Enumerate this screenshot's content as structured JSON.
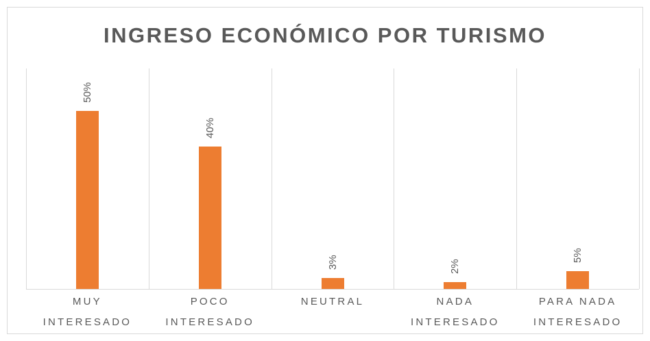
{
  "chart_data": {
    "type": "bar",
    "title": "INGRESO ECONÓMICO POR TURISMO",
    "categories": [
      "MUY INTERESADO",
      "POCO INTERESADO",
      "NEUTRAL",
      "NADA INTERESADO",
      "PARA NADA INTERESADO"
    ],
    "values": [
      50,
      40,
      3,
      2,
      5
    ],
    "value_labels": [
      "50%",
      "40%",
      "3%",
      "2%",
      "5%"
    ],
    "color": "#ed7d31"
  }
}
